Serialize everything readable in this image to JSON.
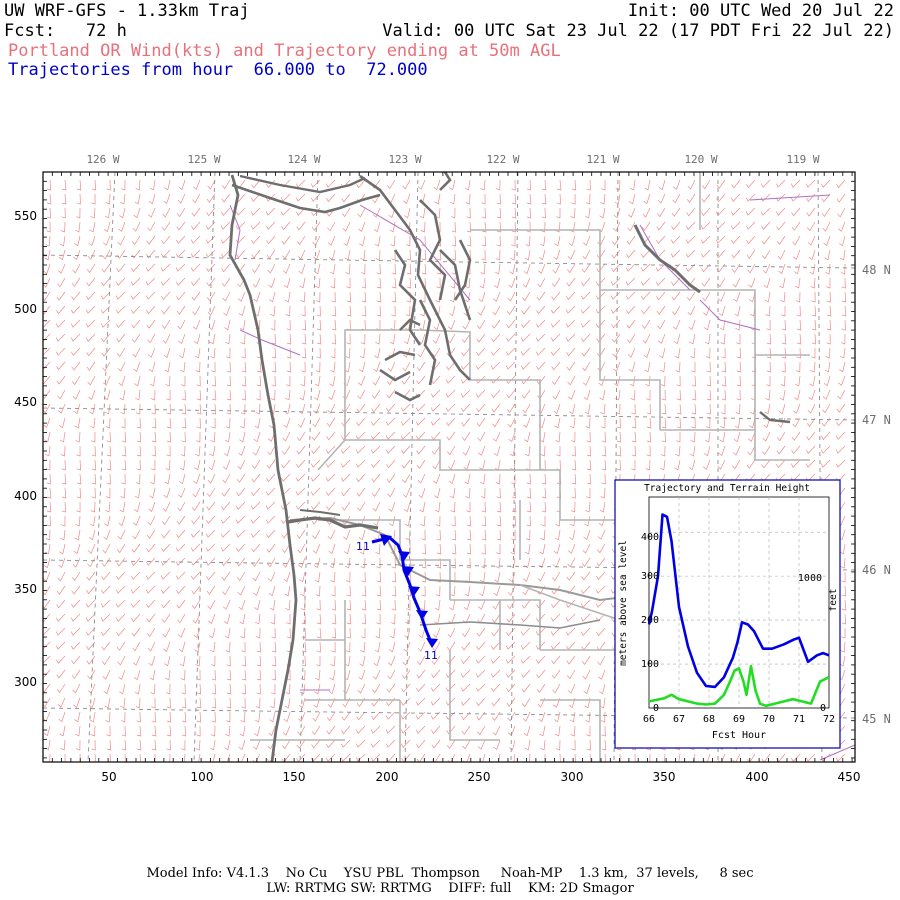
{
  "header": {
    "title": "UW WRF-GFS - 1.33km Traj",
    "fcst": "Fcst:   72 h",
    "init": "Init: 00 UTC Wed 20 Jul 22",
    "valid": "Valid: 00 UTC Sat 23 Jul 22 (17 PDT Fri 22 Jul 22)",
    "subtitle": "Portland OR Wind(kts) and Trajectory ending at 50m AGL",
    "traj_range": "Trajectories from hour  66.000 to  72.000"
  },
  "map": {
    "top_lon_labels": [
      "126 W",
      "125 W",
      "124 W",
      "123 W",
      "122 W",
      "121 W",
      "120 W",
      "119 W"
    ],
    "right_lat_labels": [
      "48 N",
      "47 N",
      "46 N",
      "45 N"
    ],
    "left_y_ticks": [
      550,
      500,
      450,
      400,
      350,
      300
    ],
    "bottom_x_ticks": [
      50,
      100,
      150,
      200,
      250,
      300,
      350,
      400,
      450
    ],
    "traj_start_label": "11",
    "traj_end_label": "11",
    "colors": {
      "wind_barbs": "#f08a8a",
      "coast": "#6e6e6e",
      "borders": "#b4b4b4",
      "trajectory": "#0000e6",
      "lakes": "#b070c0"
    }
  },
  "inset": {
    "title": "Trajectory and Terrain Height",
    "xlabel": "Fcst Hour",
    "ylabel_left": "meters above sea level",
    "ylabel_right": "feet",
    "x_ticks": [
      "66",
      "67",
      "68",
      "69",
      "70",
      "71",
      "72"
    ],
    "y_ticks": [
      "0",
      "100",
      "200",
      "300",
      "400"
    ],
    "y2_ticks": [
      "0",
      "1000"
    ]
  },
  "chart_data": {
    "type": "line",
    "title": "Trajectory and Terrain Height",
    "xlabel": "Fcst Hour",
    "ylabel": "meters above sea level",
    "xlim": [
      66,
      72
    ],
    "ylim": [
      0,
      480
    ],
    "series": [
      {
        "color": "#0000e6",
        "x": [
          66.0,
          66.1,
          66.3,
          66.45,
          66.6,
          66.75,
          67.0,
          67.3,
          67.6,
          67.9,
          68.2,
          68.5,
          68.8,
          68.95,
          69.1,
          69.3,
          69.5,
          69.8,
          70.1,
          70.5,
          70.8,
          71.0,
          71.3,
          71.6,
          71.8,
          72.0
        ],
        "values": [
          190,
          220,
          300,
          440,
          435,
          380,
          230,
          140,
          80,
          50,
          48,
          70,
          115,
          150,
          195,
          190,
          175,
          135,
          135,
          145,
          155,
          160,
          105,
          120,
          125,
          120
        ]
      },
      {
        "color": "#22dd22",
        "x": [
          66.0,
          66.2,
          66.5,
          66.75,
          67.0,
          67.3,
          67.6,
          67.9,
          68.2,
          68.5,
          68.7,
          68.85,
          69.0,
          69.15,
          69.25,
          69.4,
          69.55,
          69.7,
          69.9,
          70.2,
          70.5,
          70.8,
          71.1,
          71.4,
          71.7,
          72.0
        ],
        "values": [
          15,
          18,
          22,
          30,
          20,
          15,
          10,
          8,
          10,
          30,
          60,
          85,
          90,
          60,
          30,
          95,
          40,
          10,
          5,
          10,
          15,
          20,
          15,
          10,
          60,
          70
        ]
      }
    ]
  },
  "footer": {
    "line1": "Model Info: V4.1.3    No Cu    YSU PBL  Thompson     Noah-MP    1.3 km,  37 levels,     8 sec",
    "line2": "LW: RRTMG SW: RRTMG    DIFF: full    KM: 2D Smagor"
  }
}
